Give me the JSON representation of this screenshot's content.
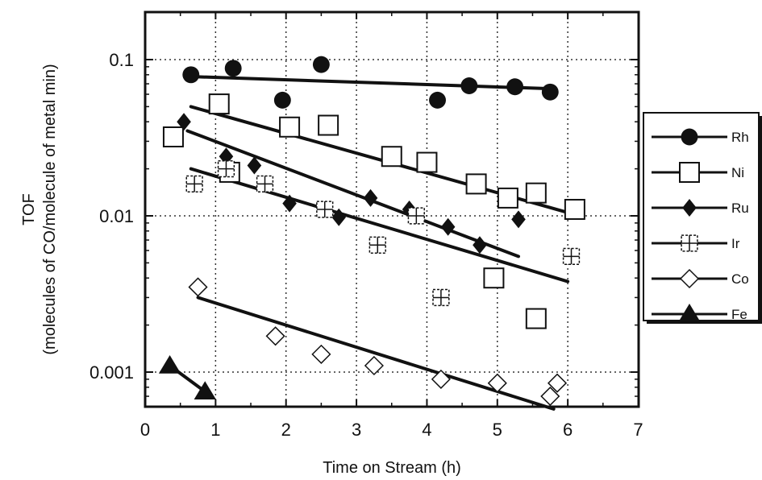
{
  "chart_data": {
    "type": "scatter",
    "title": "",
    "xlabel": "Time on Stream (h)",
    "ylabel_lines": [
      "TOF",
      "(molecules of CO/molecule of metal min)"
    ],
    "xlim": [
      0,
      7
    ],
    "ylim": [
      0.0003,
      0.2
    ],
    "yscale": "log",
    "x_ticks": [
      0,
      1,
      2,
      3,
      4,
      5,
      6,
      7
    ],
    "x_tick_labels": [
      "0",
      "1",
      "2",
      "3",
      "4",
      "5",
      "6",
      "7"
    ],
    "y_ticks": [
      0.1,
      0.01,
      0.001
    ],
    "y_tick_labels": [
      "0.1",
      "0.01",
      "0.001"
    ],
    "grid": true,
    "legend_position": "right",
    "series": [
      {
        "name": "Rh",
        "marker": "circle",
        "points": [
          [
            0.65,
            0.08
          ],
          [
            1.25,
            0.088
          ],
          [
            1.95,
            0.055
          ],
          [
            2.5,
            0.093
          ],
          [
            4.15,
            0.055
          ],
          [
            4.6,
            0.068
          ],
          [
            5.25,
            0.067
          ],
          [
            5.75,
            0.062
          ]
        ],
        "trend": [
          [
            0.6,
            0.078
          ],
          [
            5.8,
            0.065
          ]
        ]
      },
      {
        "name": "Ni",
        "marker": "square-open",
        "points": [
          [
            0.4,
            0.032
          ],
          [
            1.05,
            0.052
          ],
          [
            1.2,
            0.019
          ],
          [
            2.05,
            0.037
          ],
          [
            2.6,
            0.038
          ],
          [
            3.5,
            0.024
          ],
          [
            4.0,
            0.022
          ],
          [
            4.7,
            0.016
          ],
          [
            5.15,
            0.013
          ],
          [
            5.55,
            0.014
          ],
          [
            6.1,
            0.011
          ],
          [
            4.95,
            0.004
          ],
          [
            5.55,
            0.0022
          ]
        ],
        "trend": [
          [
            0.65,
            0.05
          ],
          [
            6.0,
            0.0105
          ]
        ]
      },
      {
        "name": "Ru",
        "marker": "diamond",
        "points": [
          [
            0.55,
            0.04
          ],
          [
            1.15,
            0.024
          ],
          [
            1.55,
            0.021
          ],
          [
            2.05,
            0.012
          ],
          [
            3.2,
            0.013
          ],
          [
            3.75,
            0.011
          ],
          [
            4.3,
            0.0085
          ],
          [
            4.75,
            0.0065
          ],
          [
            5.3,
            0.0095
          ],
          [
            2.75,
            0.0098
          ]
        ],
        "trend": [
          [
            0.6,
            0.035
          ],
          [
            5.3,
            0.0055
          ]
        ]
      },
      {
        "name": "Ir",
        "marker": "square-cross",
        "points": [
          [
            0.7,
            0.016
          ],
          [
            1.15,
            0.02
          ],
          [
            1.7,
            0.016
          ],
          [
            2.55,
            0.011
          ],
          [
            3.3,
            0.0065
          ],
          [
            3.85,
            0.01
          ],
          [
            4.2,
            0.003
          ],
          [
            6.05,
            0.0055
          ]
        ],
        "trend": [
          [
            0.65,
            0.02
          ],
          [
            6.0,
            0.0038
          ]
        ]
      },
      {
        "name": "Co",
        "marker": "diamond-open",
        "points": [
          [
            0.75,
            0.0035
          ],
          [
            1.85,
            0.0017
          ],
          [
            2.5,
            0.0013
          ],
          [
            3.25,
            0.0011
          ],
          [
            4.2,
            0.0009
          ],
          [
            5.0,
            0.00085
          ],
          [
            5.75,
            0.0007
          ],
          [
            5.85,
            0.00085
          ]
        ],
        "trend": [
          [
            0.75,
            0.003
          ],
          [
            5.8,
            0.00058
          ]
        ]
      },
      {
        "name": "Fe",
        "marker": "triangle",
        "points": [
          [
            0.35,
            0.0011
          ],
          [
            0.85,
            0.00075
          ]
        ],
        "trend": [
          [
            0.35,
            0.0011
          ],
          [
            0.85,
            0.00075
          ]
        ]
      }
    ]
  }
}
